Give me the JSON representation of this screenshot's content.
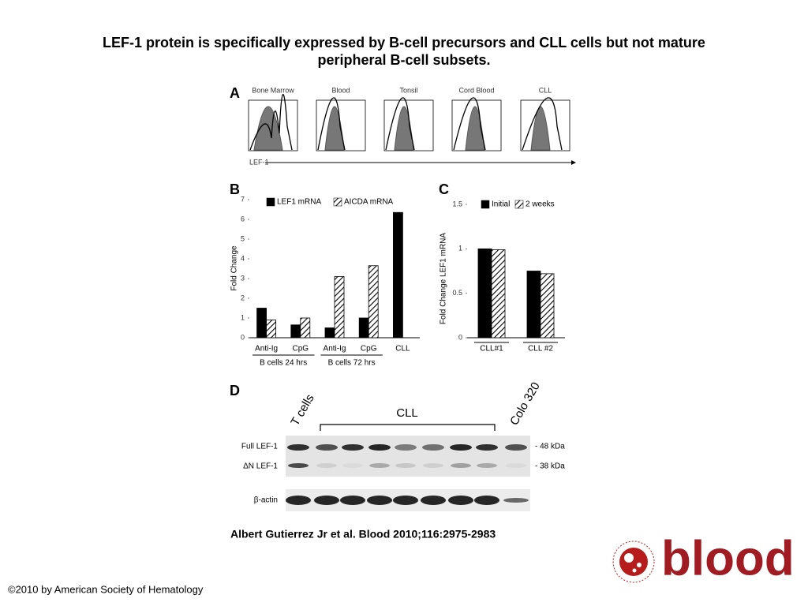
{
  "title_lines": [
    "LEF-1 protein is specifically expressed by B-cell precursors and CLL cells but not mature",
    "peripheral B-cell subsets."
  ],
  "panel_a": {
    "letter": "A",
    "headers": [
      "Bone Marrow",
      "Blood",
      "Tonsil",
      "Cord Blood",
      "CLL"
    ],
    "axis_label": "LEF-1"
  },
  "chart_data": [
    {
      "type": "bar",
      "letter": "B",
      "ylabel": "Fold Change",
      "categories": [
        "Anti-Ig",
        "CpG",
        "Anti-Ig",
        "CpG",
        "CLL"
      ],
      "group_labels": [
        "B cells 24 hrs",
        "B cells 72 hrs"
      ],
      "series": [
        {
          "name": "LEF1 mRNA",
          "color": "#000000",
          "pattern": "solid",
          "values": [
            1.5,
            0.65,
            0.5,
            1.0,
            6.35
          ]
        },
        {
          "name": "AICDA mRNA",
          "color": "#000000",
          "pattern": "hatch",
          "values": [
            0.9,
            1.0,
            3.1,
            3.65,
            null
          ]
        }
      ],
      "ylim": [
        0,
        7
      ],
      "yticks": [
        0,
        1,
        2,
        3,
        4,
        5,
        6,
        7
      ]
    },
    {
      "type": "bar",
      "letter": "C",
      "ylabel": "Fold Change LEF1 mRNA",
      "categories": [
        "CLL#1",
        "CLL #2"
      ],
      "series": [
        {
          "name": "Initial",
          "color": "#000000",
          "pattern": "solid",
          "values": [
            1.0,
            0.75
          ]
        },
        {
          "name": "2 weeks",
          "color": "#000000",
          "pattern": "hatch",
          "values": [
            0.99,
            0.72
          ]
        }
      ],
      "ylim": [
        0,
        1.5
      ],
      "yticks": [
        0,
        0.5,
        1,
        1.5
      ]
    }
  ],
  "panel_d": {
    "letter": "D",
    "lanes": [
      "T cells",
      "CLL",
      "Colo 320"
    ],
    "rows": [
      "Full LEF-1",
      "ΔN LEF-1",
      "β-actin"
    ],
    "sizes": [
      "- 48 kDa",
      "- 38 kDa"
    ]
  },
  "citation": "Albert Gutierrez Jr et al. Blood 2010;116:2975-2983",
  "logo": "blood",
  "copyright": "©2010 by American Society of Hematology"
}
